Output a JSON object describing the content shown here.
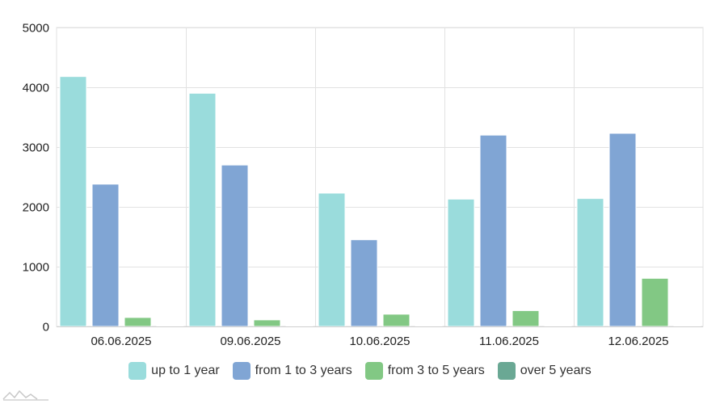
{
  "chart_data": {
    "type": "bar",
    "categories": [
      "06.06.2025",
      "09.06.2025",
      "10.06.2025",
      "11.06.2025",
      "12.06.2025"
    ],
    "series": [
      {
        "name": "up to 1 year",
        "color": "#9adcdc",
        "values": [
          4180,
          3900,
          2230,
          2130,
          2140
        ]
      },
      {
        "name": "from 1 to 3 years",
        "color": "#80a5d4",
        "values": [
          2380,
          2700,
          1450,
          3200,
          3230
        ]
      },
      {
        "name": "from 3 to 5 years",
        "color": "#82c884",
        "values": [
          150,
          110,
          205,
          265,
          805
        ]
      },
      {
        "name": "over 5 years",
        "color": "#6aa894",
        "values": [
          10,
          10,
          10,
          10,
          10
        ]
      }
    ],
    "yticks": [
      0,
      1000,
      2000,
      3000,
      4000,
      5000
    ],
    "ylim": [
      0,
      5000
    ],
    "grid": true,
    "legend_position": "bottom"
  }
}
